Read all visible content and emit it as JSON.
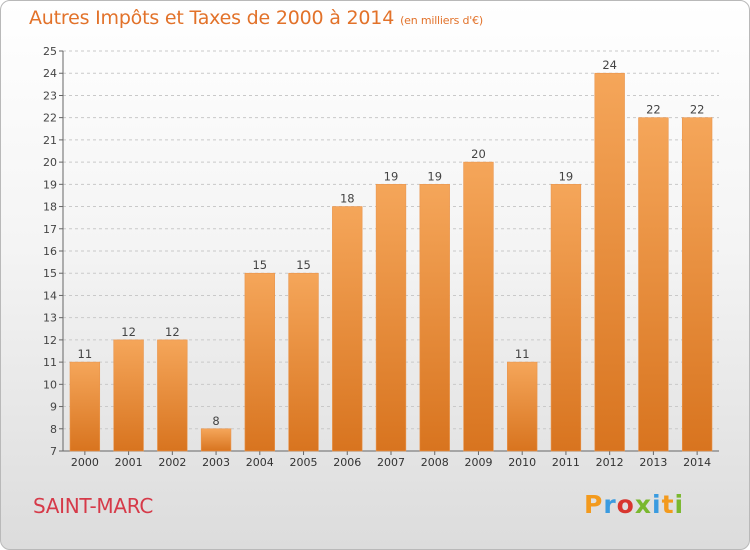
{
  "title": "Autres Impôts et Taxes de 2000 à 2014",
  "subtitle": "(en milliers d'€)",
  "location": "SAINT-MARC",
  "brand": {
    "text": "Proxiti",
    "letter_colors": [
      "#f39a1d",
      "#3a9be0",
      "#d8362f",
      "#7ab82e",
      "#3a9be0",
      "#f39a1d",
      "#7ab82e"
    ]
  },
  "colors": {
    "title": "#e2722a",
    "location": "#d63a49",
    "bar_light": "#f5a65a",
    "bar_dark": "#d8741f",
    "grid": "#c9c9c9"
  },
  "chart_data": {
    "type": "bar",
    "title": "Autres Impôts et Taxes de 2000 à 2014",
    "subtitle": "(en milliers d'€)",
    "categories": [
      "2000",
      "2001",
      "2002",
      "2003",
      "2004",
      "2005",
      "2006",
      "2007",
      "2008",
      "2009",
      "2010",
      "2011",
      "2012",
      "2013",
      "2014"
    ],
    "values": [
      11,
      12,
      12,
      8,
      15,
      15,
      18,
      19,
      19,
      20,
      11,
      19,
      24,
      22,
      22
    ],
    "ylim": [
      7,
      25
    ],
    "yticks": [
      7,
      8,
      9,
      10,
      11,
      12,
      13,
      14,
      15,
      16,
      17,
      18,
      19,
      20,
      21,
      22,
      23,
      24,
      25
    ],
    "grid": true,
    "legend": "none",
    "data_labels": true
  }
}
